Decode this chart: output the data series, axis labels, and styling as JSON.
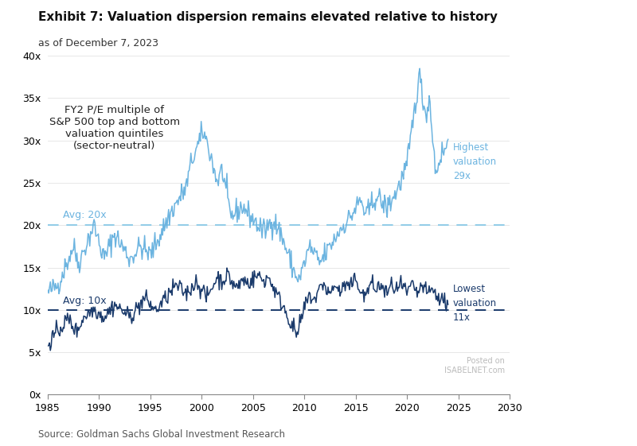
{
  "title": "Exhibit 7: Valuation dispersion remains elevated relative to history",
  "subtitle": "as of December 7, 2023",
  "source": "Source: Goldman Sachs Global Investment Research",
  "annotation": "FY2 P/E multiple of\nS&P 500 top and bottom\nvaluation quintiles\n(sector-neutral)",
  "high_avg": 20,
  "low_avg": 10,
  "high_label": "Highest\nvaluation\n29x",
  "low_label": "Lowest\nvaluation\n11x",
  "high_avg_label": "Avg: 20x",
  "low_avg_label": "Avg: 10x",
  "high_color": "#6cb4e0",
  "low_color": "#1a3a6b",
  "high_avg_color": "#90cce8",
  "low_avg_color": "#1a3a6b",
  "xlim": [
    1985,
    2030
  ],
  "ylim": [
    0,
    40
  ],
  "yticks": [
    0,
    5,
    10,
    15,
    20,
    25,
    30,
    35,
    40
  ],
  "xticks": [
    1985,
    1990,
    1995,
    2000,
    2005,
    2010,
    2015,
    2020,
    2025,
    2030
  ],
  "background_color": "#ffffff",
  "watermark": "Posted on\nISABELNET.com"
}
